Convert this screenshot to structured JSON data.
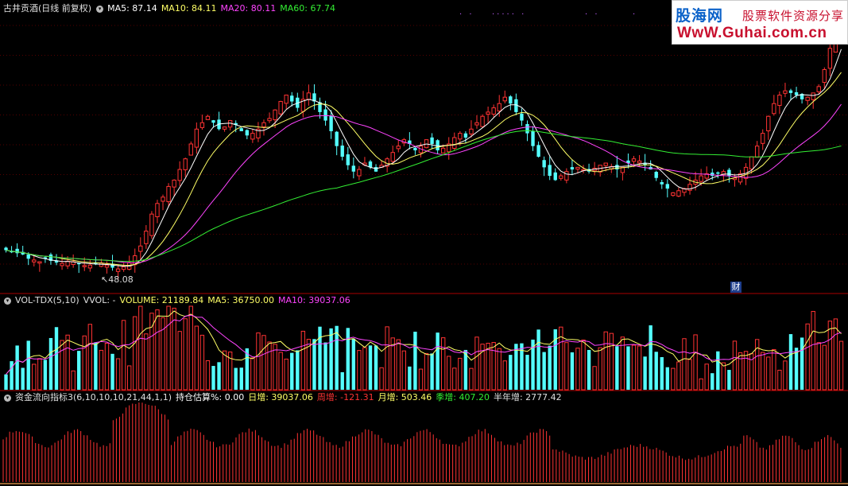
{
  "price_header": {
    "title": "古井贡酒(日线 前复权)",
    "ma5": "MA5: 87.14",
    "ma10": "MA10: 84.11",
    "ma20": "MA20: 80.11",
    "ma60": "MA60: 67.74"
  },
  "volume_header": {
    "title": "VOL-TDX(5,10)",
    "vvol": "VVOL: -",
    "volume": "VOLUME: 21189.84",
    "ma5": "MA5: 36750.00",
    "ma10": "MA10: 39037.06"
  },
  "money_header": {
    "title": "资金流向指标3(6,10,10,10,21,44,1,1)",
    "position": "持仓估算%: 0.00",
    "day": "日增: 39037.06",
    "week": "周增: -121.31",
    "month": "月增: 503.46",
    "quarter": "季增: 407.20",
    "half_year": "半年增: 2777.42"
  },
  "annotations": {
    "low_price": "48.08",
    "finance_marker": "财",
    "top_markers": [
      ".  .",
      ".....  .",
      ".  .",
      "."
    ]
  },
  "watermark": {
    "line1": "股海网",
    "line2": "股票软件资源分享",
    "line3": "WwW.Guhai.com.cn"
  },
  "colors": {
    "background": "#000000",
    "up_candle": "#ff3333",
    "down_candle": "#54ffff",
    "ma5": "#ffffff",
    "ma10": "#ffff66",
    "ma20": "#ff44ff",
    "ma60": "#33ee33",
    "separator": "#aa0000"
  },
  "chart_data": {
    "type": "candlestick",
    "symbol": "古井贡酒",
    "period": "日线 前复权",
    "price_lows_marked": [
      48.08
    ],
    "close_series_estimated": [
      52.5,
      52.0,
      51.8,
      51.5,
      50.5,
      50.2,
      49.8,
      50.5,
      50.0,
      49.6,
      49.4,
      49.9,
      49.8,
      49.2,
      48.9,
      49.0,
      49.3,
      49.5,
      49.0,
      48.4,
      48.1,
      48.6,
      49.6,
      51.2,
      53.5,
      57.0,
      61.0,
      63.5,
      65.0,
      67.5,
      69.0,
      71.5,
      74.0,
      77.5,
      81.0,
      82.5,
      84.0,
      82.5,
      81.0,
      81.5,
      83.0,
      82.0,
      80.5,
      79.5,
      80.0,
      81.0,
      82.5,
      83.5,
      85.5,
      87.5,
      89.0,
      87.5,
      86.0,
      88.0,
      89.5,
      87.5,
      85.0,
      83.0,
      80.5,
      77.0,
      74.5,
      72.5,
      71.0,
      71.5,
      73.0,
      72.0,
      71.0,
      72.5,
      74.0,
      75.5,
      77.0,
      78.5,
      77.5,
      76.0,
      77.0,
      78.5,
      77.5,
      76.0,
      76.5,
      77.5,
      79.0,
      80.0,
      79.0,
      81.0,
      82.5,
      84.0,
      85.0,
      86.0,
      87.0,
      88.5,
      87.0,
      85.0,
      83.0,
      80.0,
      77.0,
      74.5,
      72.0,
      70.0,
      69.0,
      70.0,
      71.0,
      71.5,
      72.0,
      71.5,
      71.0,
      71.8,
      72.5,
      73.0,
      72.2,
      71.5,
      72.0,
      73.0,
      74.0,
      73.5,
      72.5,
      71.5,
      69.5,
      68.0,
      67.0,
      66.0,
      66.5,
      67.0,
      68.0,
      69.0,
      70.0,
      70.5,
      70.0,
      70.5,
      71.0,
      70.0,
      69.5,
      70.5,
      72.0,
      74.5,
      77.0,
      80.0,
      84.0,
      87.0,
      89.0,
      90.0,
      89.5,
      89.0,
      88.0,
      88.5,
      89.5,
      91.0,
      95.0,
      100.0,
      105.0,
      108.0
    ],
    "moving_averages": [
      {
        "name": "MA5",
        "last": 87.14
      },
      {
        "name": "MA10",
        "last": 84.11
      },
      {
        "name": "MA20",
        "last": 80.11
      },
      {
        "name": "MA60",
        "last": 67.74
      }
    ],
    "volume": {
      "last": 21189.84,
      "ma5": 36750.0,
      "ma10": 39037.06
    },
    "money_flow": {
      "position_pct": 0.0,
      "day_inc": 39037.06,
      "week_inc": -121.31,
      "month_inc": 503.46,
      "quarter_inc": 407.2,
      "half_year_inc": 2777.42
    }
  }
}
